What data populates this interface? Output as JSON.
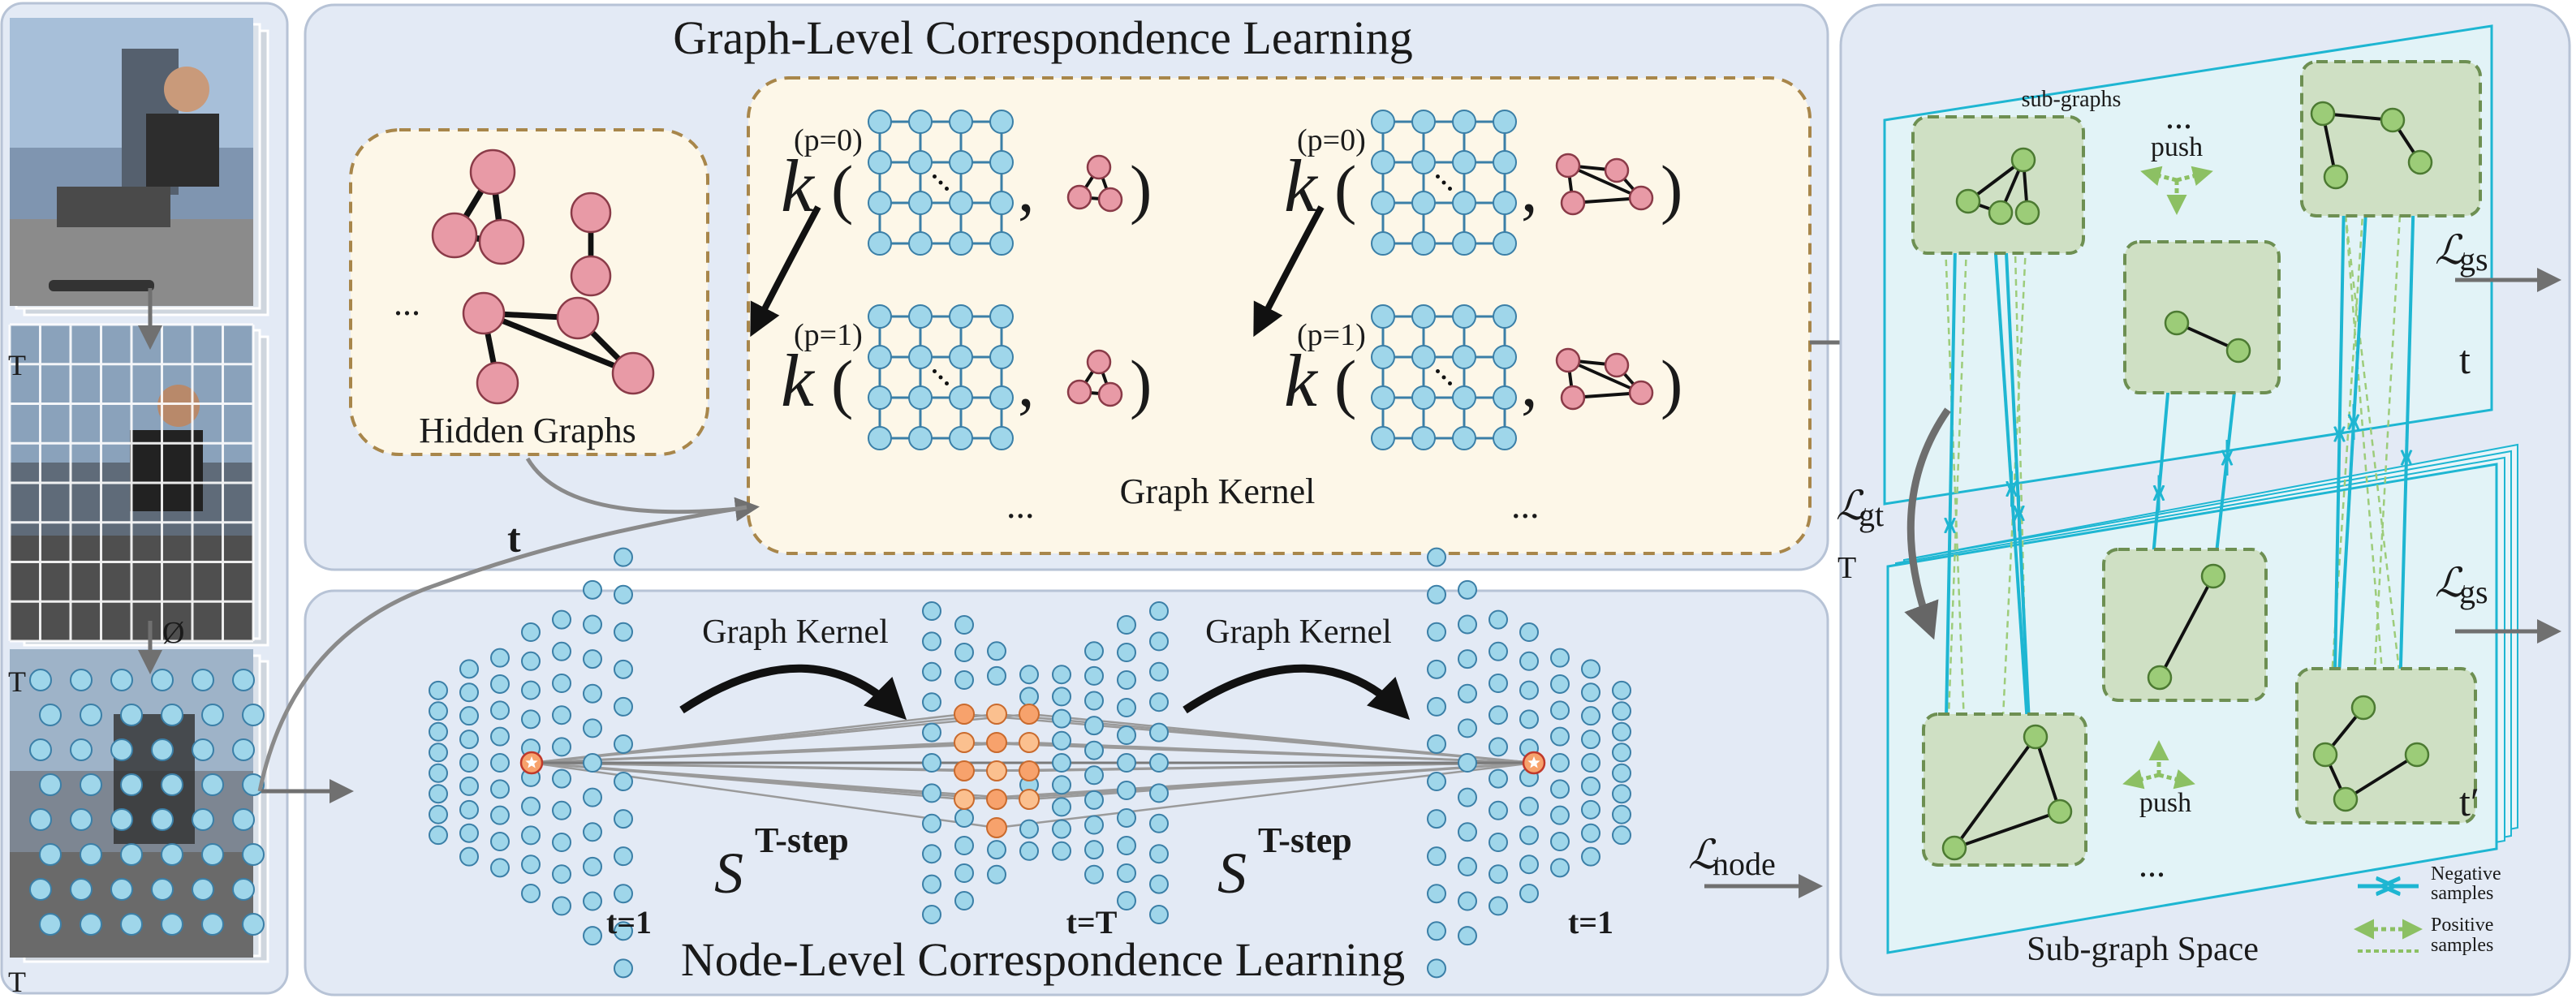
{
  "graph_level": {
    "title": "Graph-Level Correspondence Learning",
    "hidden_graphs_label": "Hidden Graphs",
    "graph_kernel_label": "Graph Kernel",
    "ellipsis": "...",
    "kernel_symbol": "k",
    "open_paren": "(",
    "close_paren": ")",
    "comma": ",",
    "p0": "(p=0)",
    "p1": "(p=1)"
  },
  "node_level": {
    "title": "Node-Level Correspondence Learning",
    "graph_kernel_label": "Graph Kernel",
    "s_symbol": "S",
    "step_label": "T-step",
    "t1": "t=1",
    "tT": "t=T",
    "loss": "node"
  },
  "left_panel": {
    "t_label": "T",
    "phi_label": "Ø",
    "t_arrow_label": "t"
  },
  "subgraph_space": {
    "title": "Sub-graph Space",
    "subgraphs_label": "sub-graphs",
    "push_label": "push",
    "ellipsis": "...",
    "loss_gs": "gs",
    "loss_gt": "gt",
    "t_label": "t",
    "t_prime_label": "t′",
    "t_curve_label": "T",
    "legend_negative": [
      "Negative",
      "samples"
    ],
    "legend_positive": [
      "Positive",
      "samples"
    ]
  },
  "colors": {
    "panel_fill": "#e3eaf5",
    "panel_stroke": "#b7c3d6",
    "kernel_box": "#fdf7e8",
    "dashed_brown": "#a8864a",
    "node_blue": "#9fd6ea",
    "node_blue_stroke": "#3b7fa7",
    "node_pink": "#e89aa6",
    "node_pink_stroke": "#8a3b48",
    "node_orange": "#f7a26c",
    "node_green": "#9ccc78",
    "node_green_stroke": "#4c7a32",
    "subgraph_box": "#cfe0c4",
    "cyan": "#1eb6d2",
    "arrow_gray": "#7a7a7a"
  }
}
